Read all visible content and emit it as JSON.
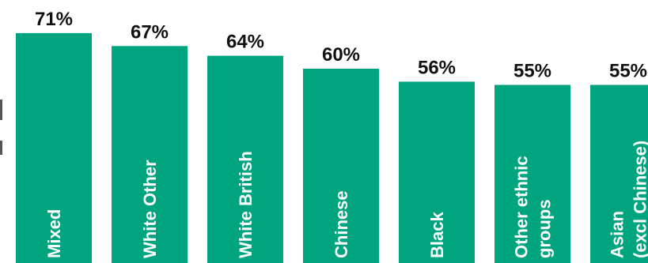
{
  "chart_data": {
    "type": "bar",
    "categories": [
      "Mixed",
      "White Other",
      "White British",
      "Chinese",
      "Black",
      "Other ethnic groups",
      "Asian (excl Chinese)"
    ],
    "category_label_lines": [
      [
        "Mixed"
      ],
      [
        "White Other"
      ],
      [
        "White British"
      ],
      [
        "Chinese"
      ],
      [
        "Black"
      ],
      [
        "Other ethnic",
        "groups"
      ],
      [
        "Asian",
        "(excl Chinese)"
      ]
    ],
    "values": [
      71,
      67,
      64,
      60,
      56,
      55,
      55
    ],
    "value_labels": [
      "71%",
      "67%",
      "64%",
      "60%",
      "56%",
      "55%",
      "55%"
    ],
    "ylim": [
      0,
      75
    ],
    "grid": false,
    "legend": "none",
    "colors": {
      "bar": "#00A47E",
      "value_text": "#111111",
      "category_text": "#FFFFFF"
    }
  }
}
